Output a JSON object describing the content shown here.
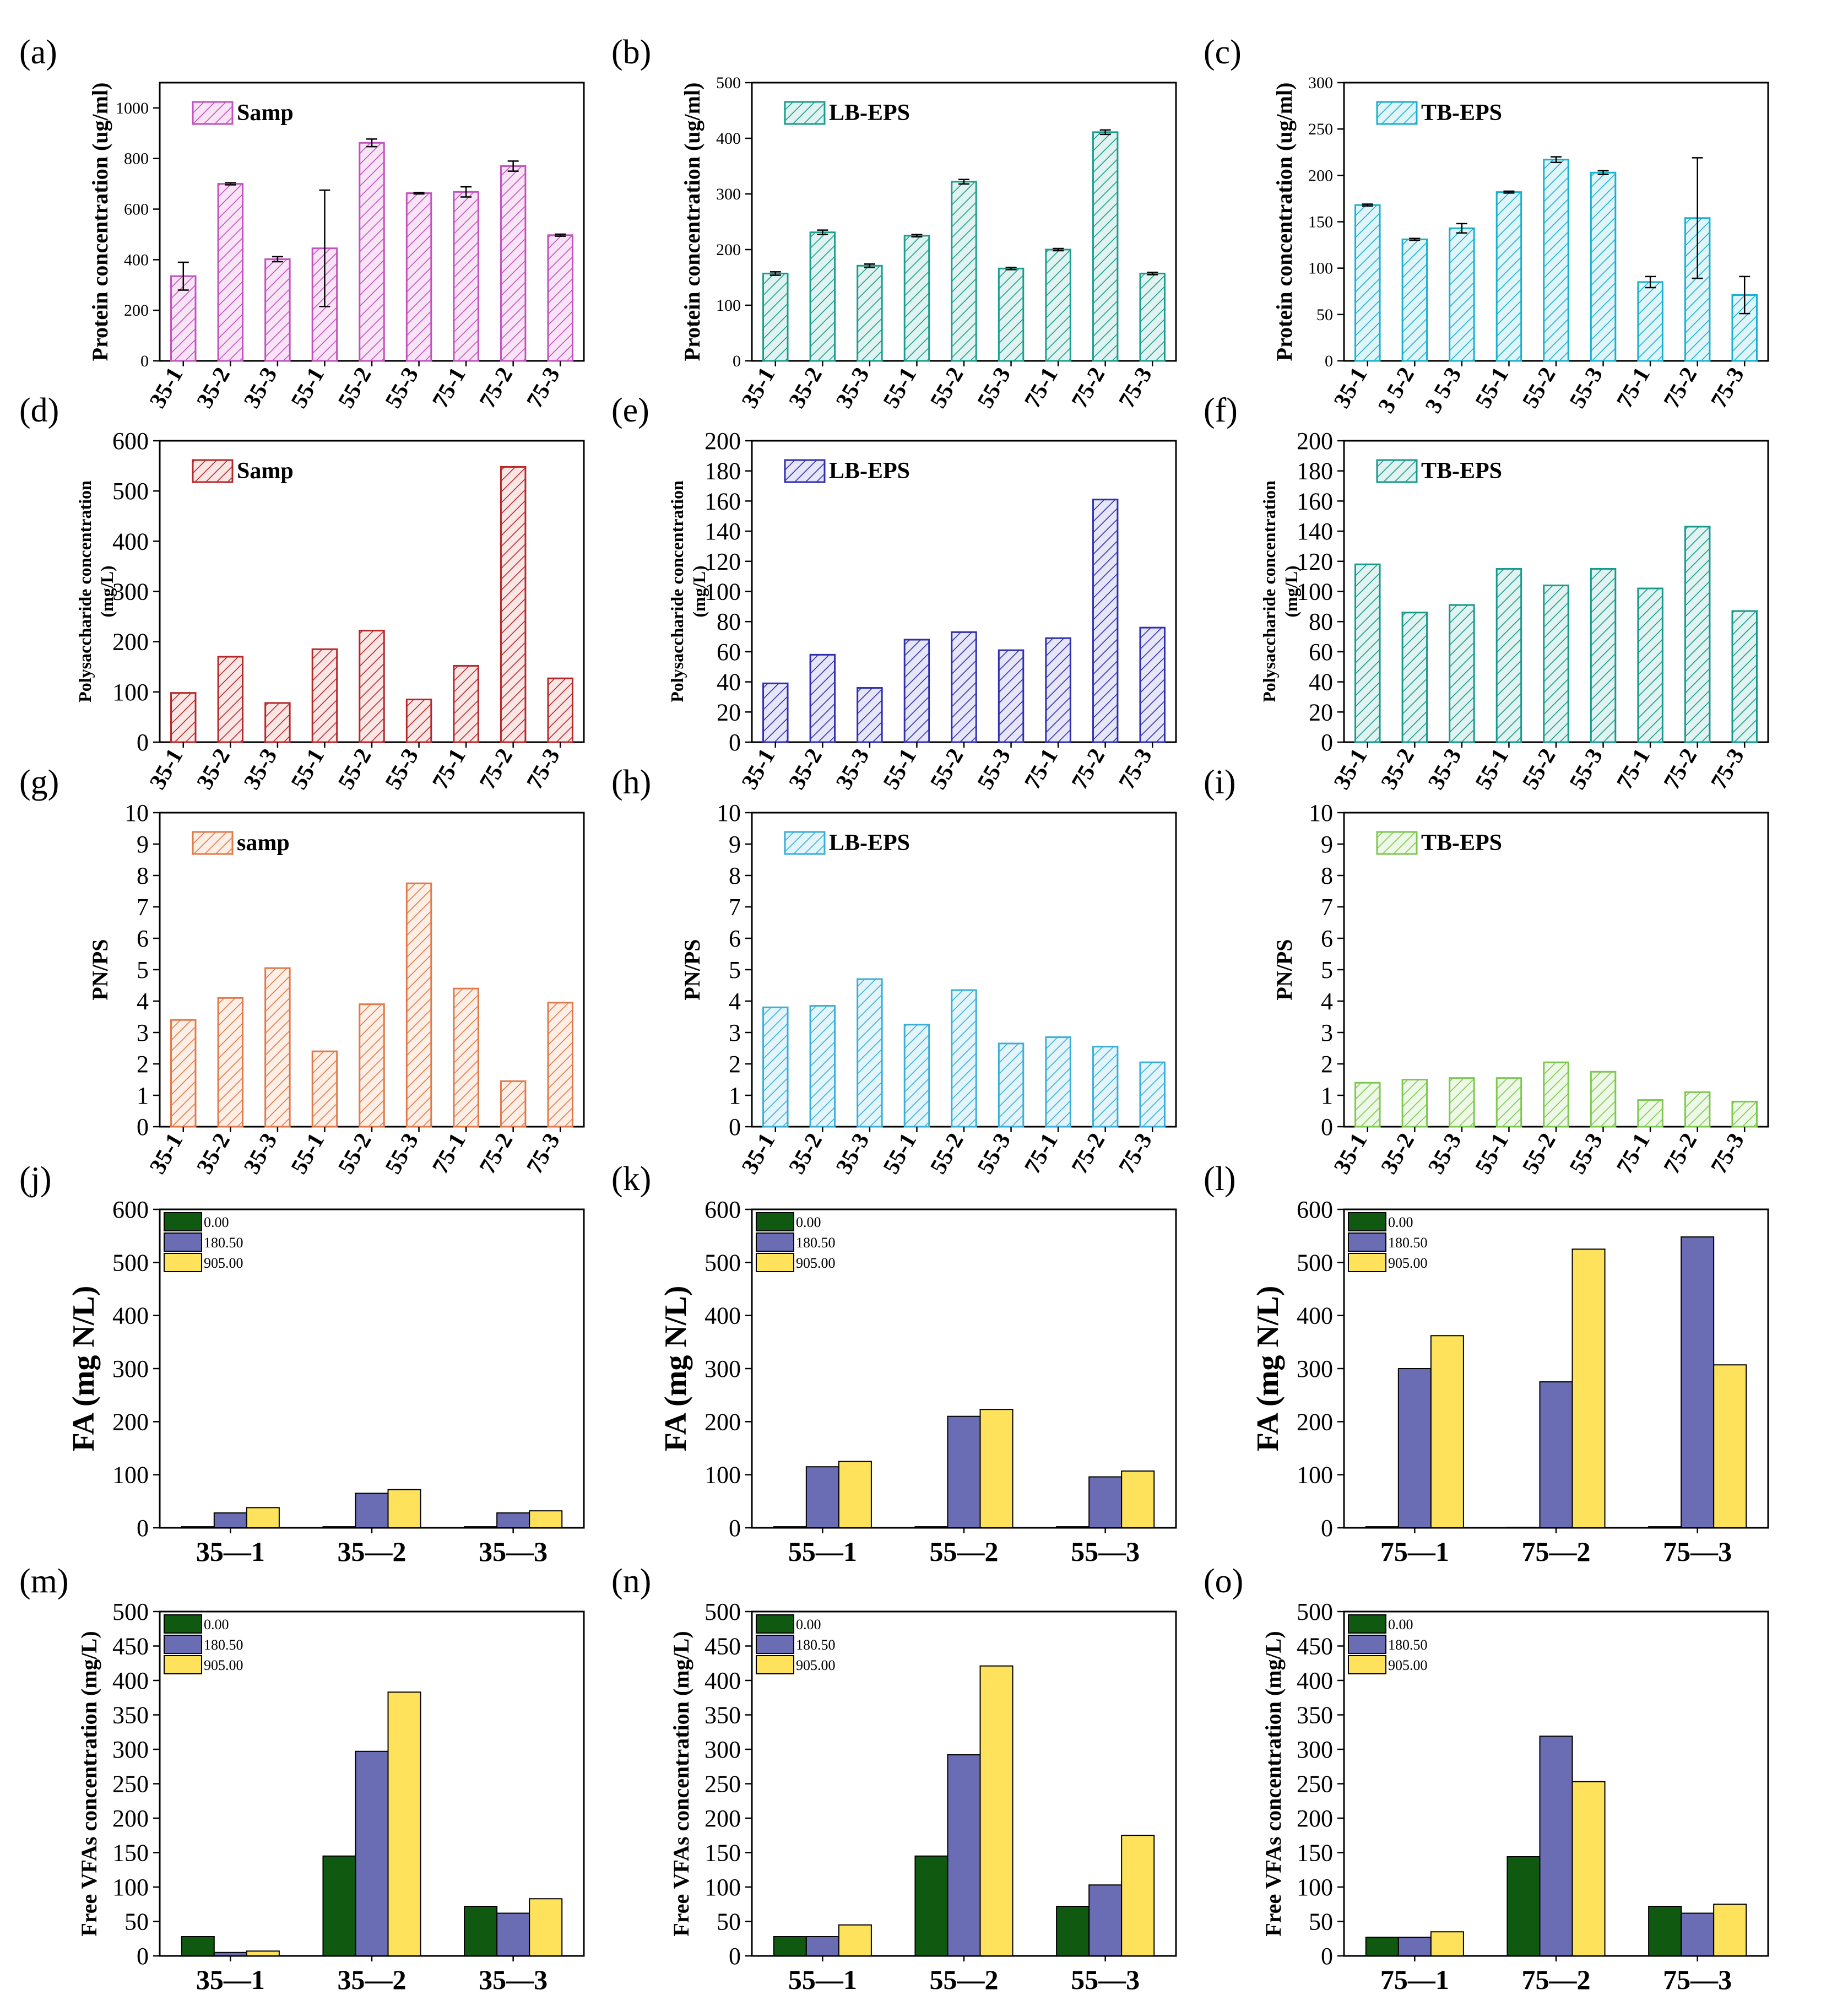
{
  "figure": {
    "categories_nine": [
      "35-1",
      "35-2",
      "35-3",
      "55-1",
      "55-2",
      "55-3",
      "75-1",
      "75-2",
      "75-3"
    ],
    "legend_levels": [
      "0.00",
      "180.50",
      "905.00"
    ],
    "palette": {
      "axis": "#000000",
      "dark_green": "#0f5a10",
      "slate_blue": "#6a6cb4",
      "yellow": "#ffe25c"
    }
  },
  "chart_data": [
    {
      "id": "a",
      "panel_label": "(a)",
      "type": "bar",
      "pattern": "hatch",
      "legend": "Samp",
      "ylabel": "Protein concentration  (ug/ml)",
      "ylim": [
        0,
        1100
      ],
      "yticks": [
        0,
        200,
        400,
        600,
        800,
        1000
      ],
      "categories": [
        "35-1",
        "35-2",
        "35-3",
        "55-1",
        "55-2",
        "55-3",
        "75-1",
        "75-2",
        "75-3"
      ],
      "values": [
        335,
        700,
        402,
        445,
        862,
        663,
        668,
        770,
        497
      ],
      "errors": [
        55,
        4,
        10,
        230,
        15,
        3,
        20,
        20,
        4
      ],
      "color": "#c252be",
      "fill": "#f8e4f6"
    },
    {
      "id": "b",
      "panel_label": "(b)",
      "type": "bar",
      "pattern": "hatch",
      "legend": "LB-EPS",
      "ylabel": "Protein concentration  (ug/ml)",
      "ylim": [
        0,
        500
      ],
      "yticks": [
        0,
        100,
        200,
        300,
        400,
        500
      ],
      "categories": [
        "35-1",
        "35-2",
        "35-3",
        "55-1",
        "55-2",
        "55-3",
        "75-1",
        "75-2",
        "75-3"
      ],
      "values": [
        157,
        231,
        171,
        225,
        322,
        166,
        200,
        411,
        157
      ],
      "errors": [
        3,
        4,
        3,
        2,
        4,
        2,
        2,
        4,
        2
      ],
      "color": "#1a9d8e",
      "fill": "#e0f3f0"
    },
    {
      "id": "c",
      "panel_label": "(c)",
      "type": "bar",
      "pattern": "hatch",
      "legend": "TB-EPS",
      "ylabel": "Protein concentration  (ug/ml)",
      "ylim": [
        0,
        300
      ],
      "yticks": [
        0,
        50,
        100,
        150,
        200,
        250,
        300
      ],
      "categories": [
        "35-1",
        "3 5-2",
        "3 5-3",
        "55-1",
        "55-2",
        "55-3",
        "75-1",
        "75-2",
        "75-3"
      ],
      "values": [
        168,
        131,
        143,
        182,
        217,
        203,
        85,
        154,
        71
      ],
      "errors": [
        1,
        1,
        5,
        1,
        3,
        2,
        6,
        65,
        20
      ],
      "color": "#1ab0d0",
      "fill": "#e0f5fa"
    },
    {
      "id": "d",
      "panel_label": "(d)",
      "type": "bar",
      "pattern": "hatch",
      "legend": "Samp",
      "ylabel": "Polysaccharide concentration",
      "ylabel2": "(mg/L)",
      "ylim": [
        0,
        600
      ],
      "yticks": [
        0,
        100,
        200,
        300,
        400,
        500,
        600
      ],
      "categories": [
        "35-1",
        "35-2",
        "35-3",
        "55-1",
        "55-2",
        "55-3",
        "75-1",
        "75-2",
        "75-3"
      ],
      "values": [
        98,
        170,
        78,
        185,
        222,
        85,
        152,
        548,
        127
      ],
      "color": "#b5292b",
      "fill": "#fbe6e6"
    },
    {
      "id": "e",
      "panel_label": "(e)",
      "type": "bar",
      "pattern": "hatch",
      "legend": "LB-EPS",
      "ylabel": "Polysaccharide concentration",
      "ylabel2": "(mg/L)",
      "ylim": [
        0,
        200
      ],
      "yticks": [
        0,
        20,
        40,
        60,
        80,
        100,
        120,
        140,
        160,
        180,
        200
      ],
      "categories": [
        "35-1",
        "35-2",
        "35-3",
        "55-1",
        "55-2",
        "55-3",
        "75-1",
        "75-2",
        "75-3"
      ],
      "values": [
        39,
        58,
        36,
        68,
        73,
        61,
        69,
        161,
        76
      ],
      "color": "#2f2fb0",
      "fill": "#e6e6f8"
    },
    {
      "id": "f",
      "panel_label": "(f)",
      "type": "bar",
      "pattern": "hatch",
      "legend": "TB-EPS",
      "ylabel": "Polysaccharide concentration",
      "ylabel2": "(mg/L)",
      "ylim": [
        0,
        200
      ],
      "yticks": [
        0,
        20,
        40,
        60,
        80,
        100,
        120,
        140,
        160,
        180,
        200
      ],
      "categories": [
        "35-1",
        "35-2",
        "35-3",
        "55-1",
        "55-2",
        "55-3",
        "75-1",
        "75-2",
        "75-3"
      ],
      "values": [
        118,
        86,
        91,
        115,
        104,
        115,
        102,
        143,
        87
      ],
      "color": "#17998c",
      "fill": "#e0f3f0"
    },
    {
      "id": "g",
      "panel_label": "(g)",
      "type": "bar",
      "pattern": "hatch",
      "legend": "samp",
      "ylabel": "PN/PS",
      "ylim": [
        0,
        10
      ],
      "yticks": [
        0,
        1,
        2,
        3,
        4,
        5,
        6,
        7,
        8,
        9,
        10
      ],
      "categories": [
        "35-1",
        "35-2",
        "35-3",
        "55-1",
        "55-2",
        "55-3",
        "75-1",
        "75-2",
        "75-3"
      ],
      "values": [
        3.4,
        4.1,
        5.05,
        2.4,
        3.9,
        7.75,
        4.4,
        1.45,
        3.95
      ],
      "color": "#e07a4a",
      "fill": "#fdeee6"
    },
    {
      "id": "h",
      "panel_label": "(h)",
      "type": "bar",
      "pattern": "hatch",
      "legend": "LB-EPS",
      "ylabel": "PN/PS",
      "ylim": [
        0,
        10
      ],
      "yticks": [
        0,
        1,
        2,
        3,
        4,
        5,
        6,
        7,
        8,
        9,
        10
      ],
      "categories": [
        "35-1",
        "35-2",
        "35-3",
        "55-1",
        "55-2",
        "55-3",
        "75-1",
        "75-2",
        "75-3"
      ],
      "values": [
        3.8,
        3.85,
        4.7,
        3.25,
        4.35,
        2.65,
        2.85,
        2.55,
        2.05
      ],
      "color": "#3aaed8",
      "fill": "#e3f4fa"
    },
    {
      "id": "i",
      "panel_label": "(i)",
      "type": "bar",
      "pattern": "hatch",
      "legend": "TB-EPS",
      "ylabel": "PN/PS",
      "ylim": [
        0,
        10
      ],
      "yticks": [
        0,
        1,
        2,
        3,
        4,
        5,
        6,
        7,
        8,
        9,
        10
      ],
      "categories": [
        "35-1",
        "35-2",
        "35-3",
        "55-1",
        "55-2",
        "55-3",
        "75-1",
        "75-2",
        "75-3"
      ],
      "values": [
        1.4,
        1.5,
        1.55,
        1.55,
        2.05,
        1.75,
        0.85,
        1.1,
        0.8
      ],
      "color": "#7cc850",
      "fill": "#eef8e6"
    },
    {
      "id": "j",
      "panel_label": "(j)",
      "type": "bar",
      "pattern": "grouped",
      "ylabel": "FA (mg N/L)",
      "ylim": [
        0,
        600
      ],
      "yticks": [
        0,
        100,
        200,
        300,
        400,
        500,
        600
      ],
      "categories": [
        "35—1",
        "35—2",
        "35—3"
      ],
      "series": [
        {
          "name": "0.00",
          "values": [
            2,
            2,
            2
          ]
        },
        {
          "name": "180.50",
          "values": [
            28,
            65,
            28
          ]
        },
        {
          "name": "905.00",
          "values": [
            38,
            72,
            32
          ]
        }
      ]
    },
    {
      "id": "k",
      "panel_label": "(k)",
      "type": "bar",
      "pattern": "grouped",
      "ylabel": "FA (mg N/L)",
      "ylim": [
        0,
        600
      ],
      "yticks": [
        0,
        100,
        200,
        300,
        400,
        500,
        600
      ],
      "categories": [
        "55—1",
        "55—2",
        "55—3"
      ],
      "series": [
        {
          "name": "0.00",
          "values": [
            2,
            2,
            2
          ]
        },
        {
          "name": "180.50",
          "values": [
            115,
            210,
            96
          ]
        },
        {
          "name": "905.00",
          "values": [
            125,
            223,
            107
          ]
        }
      ]
    },
    {
      "id": "l",
      "panel_label": "(l)",
      "type": "bar",
      "pattern": "grouped",
      "ylabel": "FA (mg N/L)",
      "ylim": [
        0,
        600
      ],
      "yticks": [
        0,
        100,
        200,
        300,
        400,
        500,
        600
      ],
      "categories": [
        "75—1",
        "75—2",
        "75—3"
      ],
      "series": [
        {
          "name": "0.00",
          "values": [
            2,
            1,
            2
          ]
        },
        {
          "name": "180.50",
          "values": [
            300,
            275,
            548
          ]
        },
        {
          "name": "905.00",
          "values": [
            362,
            525,
            307
          ]
        }
      ]
    },
    {
      "id": "m",
      "panel_label": "(m)",
      "type": "bar",
      "pattern": "grouped",
      "ylabel": "Free VFAs concentration  (mg/L)",
      "ylim": [
        0,
        500
      ],
      "yticks": [
        0,
        50,
        100,
        150,
        200,
        250,
        300,
        350,
        400,
        450,
        500
      ],
      "categories": [
        "35—1",
        "35—2",
        "35—3"
      ],
      "series": [
        {
          "name": "0.00",
          "values": [
            28,
            145,
            72
          ]
        },
        {
          "name": "180.50",
          "values": [
            5,
            297,
            62
          ]
        },
        {
          "name": "905.00",
          "values": [
            7,
            383,
            83
          ]
        }
      ]
    },
    {
      "id": "n",
      "panel_label": "(n)",
      "type": "bar",
      "pattern": "grouped",
      "ylabel": "Free VFAs concentration  (mg/L)",
      "ylim": [
        0,
        500
      ],
      "yticks": [
        0,
        50,
        100,
        150,
        200,
        250,
        300,
        350,
        400,
        450,
        500
      ],
      "categories": [
        "55—1",
        "55—2",
        "55—3"
      ],
      "series": [
        {
          "name": "0.00",
          "values": [
            28,
            145,
            72
          ]
        },
        {
          "name": "180.50",
          "values": [
            28,
            292,
            103
          ]
        },
        {
          "name": "905.00",
          "values": [
            45,
            421,
            175
          ]
        }
      ]
    },
    {
      "id": "o",
      "panel_label": "(o)",
      "type": "bar",
      "pattern": "grouped",
      "ylabel": "Free VFAs concentration  (mg/L)",
      "ylim": [
        0,
        500
      ],
      "yticks": [
        0,
        50,
        100,
        150,
        200,
        250,
        300,
        350,
        400,
        450,
        500
      ],
      "categories": [
        "75—1",
        "75—2",
        "75—3"
      ],
      "series": [
        {
          "name": "0.00",
          "values": [
            27,
            144,
            72
          ]
        },
        {
          "name": "180.50",
          "values": [
            27,
            319,
            62
          ]
        },
        {
          "name": "905.00",
          "values": [
            35,
            253,
            75
          ]
        }
      ]
    }
  ]
}
